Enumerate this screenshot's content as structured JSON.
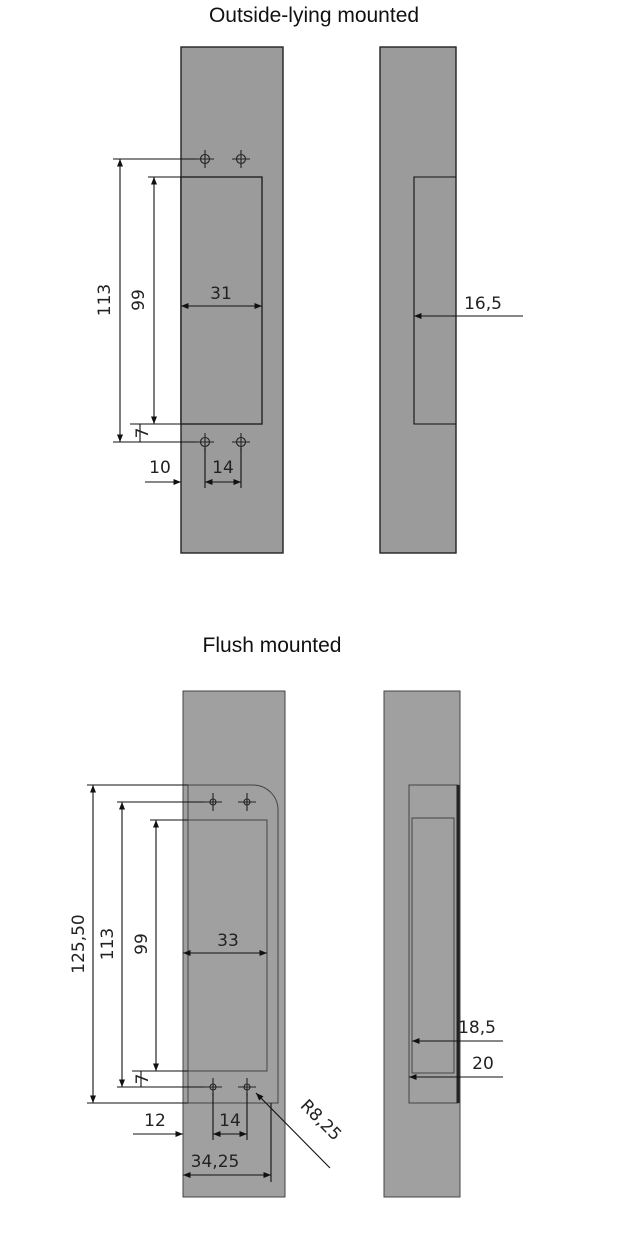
{
  "sections": {
    "outside": {
      "title": "Outside-lying mounted"
    },
    "flush": {
      "title": "Flush mounted"
    }
  },
  "dimensions": {
    "outside": {
      "height_113": "113",
      "height_99": "99",
      "width_31": "31",
      "offset_7": "7",
      "offset_10": "10",
      "spacing_14": "14",
      "depth_16_5": "16,5"
    },
    "flush": {
      "height_125_50": "125,50",
      "height_113": "113",
      "height_99": "99",
      "width_33": "33",
      "offset_7": "7",
      "offset_12": "12",
      "spacing_14": "14",
      "width_34_25": "34,25",
      "radius": "R8,25",
      "depth_18_5": "18,5",
      "depth_20": "20"
    }
  },
  "colors": {
    "plate": "#9b9b9b",
    "line": "#111111"
  }
}
